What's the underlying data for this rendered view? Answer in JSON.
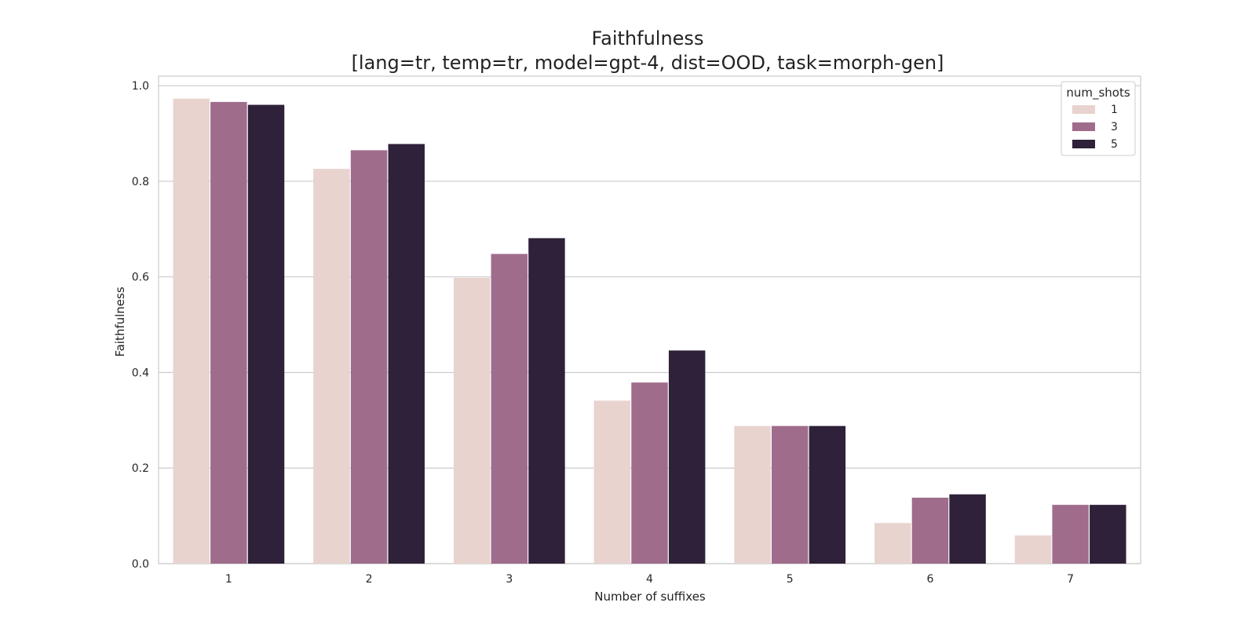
{
  "chart_data": {
    "type": "bar",
    "title": "Faithfulness",
    "subtitle": "[lang=tr, temp=tr, model=gpt-4, dist=OOD, task=morph-gen]",
    "xlabel": "Number of suffixes",
    "ylabel": "Faithfulness",
    "categories": [
      "1",
      "2",
      "3",
      "4",
      "5",
      "6",
      "7"
    ],
    "ylim": [
      0,
      1.02
    ],
    "yticks": [
      "0.0",
      "0.2",
      "0.4",
      "0.6",
      "0.8",
      "1.0"
    ],
    "grid": true,
    "legend": {
      "title": "num_shots",
      "position": "top-right"
    },
    "series": [
      {
        "name": "1",
        "color": "#e8d3cf",
        "values": [
          0.973,
          0.826,
          0.598,
          0.341,
          0.288,
          0.085,
          0.059
        ]
      },
      {
        "name": "3",
        "color": "#a06c8c",
        "values": [
          0.966,
          0.865,
          0.648,
          0.379,
          0.288,
          0.138,
          0.123
        ]
      },
      {
        "name": "5",
        "color": "#2e2139",
        "values": [
          0.96,
          0.878,
          0.681,
          0.446,
          0.288,
          0.145,
          0.123
        ]
      }
    ]
  }
}
